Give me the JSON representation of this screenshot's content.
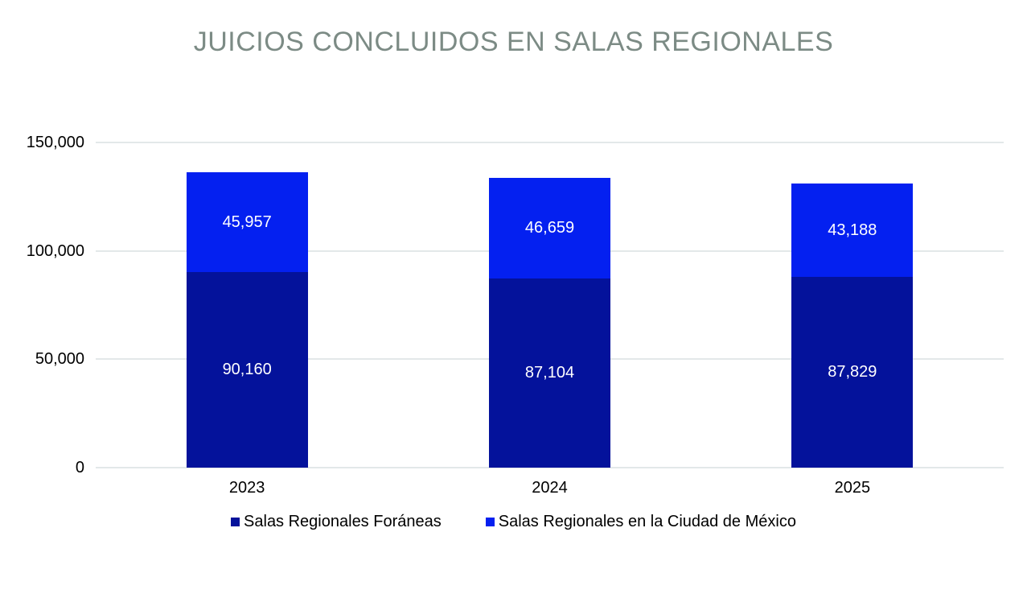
{
  "title": "JUICIOS CONCLUIDOS EN SALAS REGIONALES",
  "colors": {
    "background": "#ffffff",
    "title": "#7c8b85",
    "gridline": "#e3e8e9",
    "axis_text": "#000000",
    "bar_label": "#ffffff",
    "series_foraneas": "#04129b",
    "series_cdmx": "#0420f0"
  },
  "chart_data": {
    "type": "bar",
    "stacked": true,
    "title": "JUICIOS CONCLUIDOS EN SALAS REGIONALES",
    "xlabel": "",
    "ylabel": "",
    "categories": [
      "2023",
      "2024",
      "2025"
    ],
    "series": [
      {
        "name": "Salas Regionales Foráneas",
        "color": "#04129b",
        "values": [
          90160,
          87104,
          87829
        ]
      },
      {
        "name": "Salas Regionales en la Ciudad de México",
        "color": "#0420f0",
        "values": [
          45957,
          46659,
          43188
        ]
      }
    ],
    "value_labels": [
      [
        "90,160",
        "87,104",
        "87,829"
      ],
      [
        "45,957",
        "46,659",
        "43,188"
      ]
    ],
    "totals": [
      136117,
      133763,
      131017
    ],
    "ylim": [
      0,
      150000
    ],
    "yticks": [
      0,
      50000,
      100000,
      150000
    ],
    "ytick_labels": [
      "0",
      "50,000",
      "100,000",
      "150,000"
    ],
    "grid": true,
    "legend_position": "bottom"
  },
  "legend": {
    "items": [
      {
        "label": "Salas Regionales Foráneas",
        "color": "#04129b"
      },
      {
        "label": "Salas Regionales en la Ciudad de México",
        "color": "#0420f0"
      }
    ]
  }
}
